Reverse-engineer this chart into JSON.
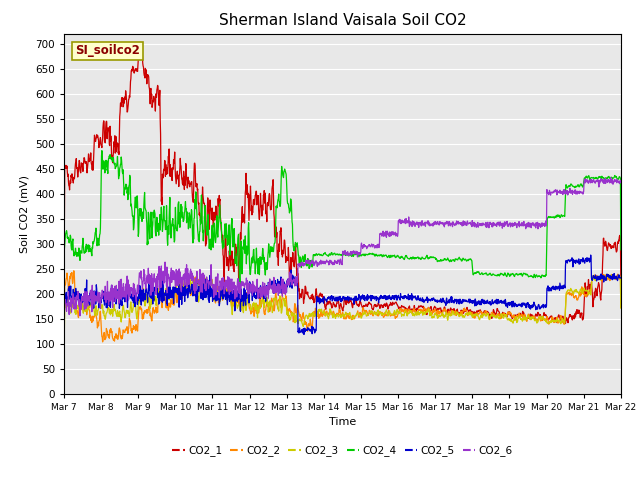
{
  "title": "Sherman Island Vaisala Soil CO2",
  "ylabel": "Soil CO2 (mV)",
  "xlabel": "Time",
  "ylim": [
    0,
    720
  ],
  "yticks": [
    0,
    50,
    100,
    150,
    200,
    250,
    300,
    350,
    400,
    450,
    500,
    550,
    600,
    650,
    700
  ],
  "plot_bg_color": "#e8e8e8",
  "fig_bg_color": "#ffffff",
  "series_colors": {
    "CO2_1": "#cc0000",
    "CO2_2": "#ff8800",
    "CO2_3": "#cccc00",
    "CO2_4": "#00cc00",
    "CO2_5": "#0000cc",
    "CO2_6": "#9933cc"
  },
  "legend_label": "SI_soilco2",
  "date_labels": [
    "Mar 7",
    "Mar 8",
    "Mar 9",
    "Mar 10",
    "Mar 11",
    "Mar 12",
    "Mar 13",
    "Mar 14",
    "Mar 15",
    "Mar 16",
    "Mar 17",
    "Mar 18",
    "Mar 19",
    "Mar 20",
    "Mar 21",
    "Mar 22"
  ],
  "num_points": 1500
}
